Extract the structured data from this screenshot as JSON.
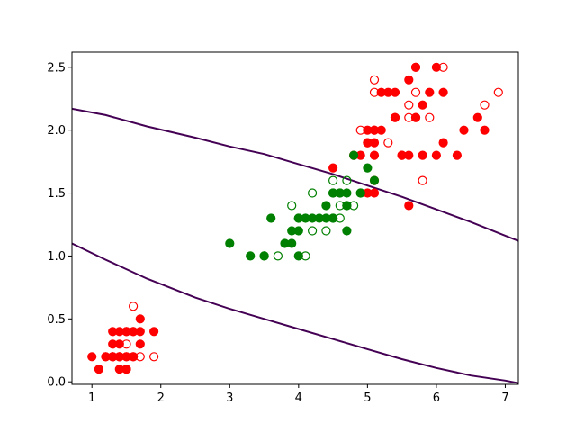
{
  "chart_data": {
    "type": "scatter",
    "title": "",
    "xlabel": "",
    "ylabel": "",
    "xlim": [
      0.71,
      7.19
    ],
    "ylim": [
      -0.02,
      2.62
    ],
    "xticks": [
      1,
      2,
      3,
      4,
      5,
      6,
      7
    ],
    "xtick_labels": [
      "1",
      "2",
      "3",
      "4",
      "5",
      "6",
      "7"
    ],
    "yticks": [
      0.0,
      0.5,
      1.0,
      1.5,
      2.0,
      2.5
    ],
    "ytick_labels": [
      "0.0",
      "0.5",
      "1.0",
      "1.5",
      "2.0",
      "2.5"
    ],
    "grid": false,
    "colors": {
      "red": "#ff0000",
      "green": "#008000",
      "boundary": "#440154"
    },
    "series": [
      {
        "color": "red",
        "fill": "filled",
        "points": [
          [
            1.0,
            0.2
          ],
          [
            1.1,
            0.1
          ],
          [
            1.2,
            0.2
          ],
          [
            1.3,
            0.2
          ],
          [
            1.3,
            0.3
          ],
          [
            1.3,
            0.4
          ],
          [
            1.4,
            0.1
          ],
          [
            1.4,
            0.2
          ],
          [
            1.4,
            0.3
          ],
          [
            1.4,
            0.4
          ],
          [
            1.5,
            0.1
          ],
          [
            1.5,
            0.2
          ],
          [
            1.5,
            0.4
          ],
          [
            1.6,
            0.2
          ],
          [
            1.6,
            0.4
          ],
          [
            1.7,
            0.3
          ],
          [
            1.7,
            0.4
          ],
          [
            1.7,
            0.5
          ],
          [
            1.9,
            0.4
          ],
          [
            1.5,
            0.1
          ],
          [
            1.4,
            0.2
          ],
          [
            1.6,
            0.2
          ],
          [
            1.5,
            0.2
          ],
          [
            1.3,
            0.2
          ],
          [
            4.5,
            1.7
          ],
          [
            4.8,
            1.8
          ],
          [
            4.9,
            1.8
          ],
          [
            5.0,
            2.0
          ],
          [
            5.0,
            1.5
          ],
          [
            5.1,
            1.9
          ],
          [
            5.1,
            2.0
          ],
          [
            5.1,
            1.5
          ],
          [
            5.1,
            1.8
          ],
          [
            5.2,
            2.3
          ],
          [
            5.3,
            2.3
          ],
          [
            5.4,
            2.3
          ],
          [
            5.5,
            1.8
          ],
          [
            5.6,
            2.4
          ],
          [
            5.6,
            1.8
          ],
          [
            5.6,
            1.4
          ],
          [
            5.7,
            2.1
          ],
          [
            5.8,
            2.2
          ],
          [
            5.8,
            1.8
          ],
          [
            5.9,
            2.3
          ],
          [
            6.0,
            2.5
          ],
          [
            6.0,
            1.8
          ],
          [
            6.1,
            2.3
          ],
          [
            6.1,
            1.9
          ],
          [
            6.3,
            1.8
          ],
          [
            6.4,
            2.0
          ],
          [
            6.6,
            2.1
          ],
          [
            6.7,
            2.0
          ],
          [
            5.0,
            1.9
          ],
          [
            5.1,
            1.6
          ],
          [
            5.1,
            2.0
          ],
          [
            5.2,
            2.0
          ],
          [
            5.4,
            2.1
          ],
          [
            5.5,
            1.8
          ],
          [
            5.7,
            2.5
          ]
        ]
      },
      {
        "color": "red",
        "fill": "hollow",
        "points": [
          [
            1.2,
            0.2
          ],
          [
            1.3,
            0.2
          ],
          [
            1.4,
            0.2
          ],
          [
            1.5,
            0.3
          ],
          [
            1.5,
            0.4
          ],
          [
            1.6,
            0.4
          ],
          [
            1.6,
            0.6
          ],
          [
            1.7,
            0.2
          ],
          [
            1.9,
            0.2
          ],
          [
            4.9,
            2.0
          ],
          [
            5.0,
            1.9
          ],
          [
            5.1,
            2.4
          ],
          [
            5.1,
            2.3
          ],
          [
            5.3,
            1.9
          ],
          [
            5.4,
            2.1
          ],
          [
            5.6,
            2.2
          ],
          [
            5.6,
            2.1
          ],
          [
            5.7,
            2.5
          ],
          [
            5.7,
            2.3
          ],
          [
            5.7,
            2.1
          ],
          [
            5.8,
            1.6
          ],
          [
            5.9,
            2.1
          ],
          [
            6.1,
            2.5
          ],
          [
            6.7,
            2.2
          ],
          [
            6.9,
            2.3
          ]
        ]
      },
      {
        "color": "green",
        "fill": "filled",
        "points": [
          [
            3.0,
            1.1
          ],
          [
            3.3,
            1.0
          ],
          [
            3.5,
            1.0
          ],
          [
            3.6,
            1.3
          ],
          [
            3.8,
            1.1
          ],
          [
            3.9,
            1.1
          ],
          [
            3.9,
            1.2
          ],
          [
            4.0,
            1.0
          ],
          [
            4.0,
            1.2
          ],
          [
            4.0,
            1.3
          ],
          [
            4.1,
            1.3
          ],
          [
            4.2,
            1.3
          ],
          [
            4.3,
            1.3
          ],
          [
            4.4,
            1.3
          ],
          [
            4.4,
            1.4
          ],
          [
            4.5,
            1.5
          ],
          [
            4.6,
            1.5
          ],
          [
            4.7,
            1.4
          ],
          [
            4.7,
            1.2
          ],
          [
            4.7,
            1.5
          ],
          [
            4.8,
            1.8
          ],
          [
            4.9,
            1.5
          ],
          [
            5.0,
            1.7
          ],
          [
            5.1,
            1.6
          ],
          [
            3.5,
            1.0
          ],
          [
            4.0,
            1.3
          ],
          [
            4.5,
            1.5
          ],
          [
            4.7,
            1.4
          ],
          [
            4.6,
            1.5
          ],
          [
            4.5,
            1.3
          ]
        ]
      },
      {
        "color": "green",
        "fill": "hollow",
        "points": [
          [
            3.7,
            1.0
          ],
          [
            3.9,
            1.4
          ],
          [
            4.1,
            1.0
          ],
          [
            4.2,
            1.2
          ],
          [
            4.2,
            1.5
          ],
          [
            4.4,
            1.2
          ],
          [
            4.5,
            1.3
          ],
          [
            4.5,
            1.6
          ],
          [
            4.6,
            1.4
          ],
          [
            4.6,
            1.3
          ],
          [
            4.7,
            1.6
          ],
          [
            4.8,
            1.4
          ],
          [
            4.9,
            1.5
          ]
        ]
      }
    ],
    "boundaries": [
      [
        [
          0.71,
          2.17
        ],
        [
          1.2,
          2.12
        ],
        [
          1.8,
          2.03
        ],
        [
          2.5,
          1.94
        ],
        [
          3.0,
          1.87
        ],
        [
          3.5,
          1.81
        ],
        [
          4.0,
          1.73
        ],
        [
          4.5,
          1.65
        ],
        [
          5.0,
          1.56
        ],
        [
          5.5,
          1.47
        ],
        [
          6.0,
          1.37
        ],
        [
          6.5,
          1.27
        ],
        [
          7.19,
          1.12
        ]
      ],
      [
        [
          0.71,
          1.1
        ],
        [
          1.2,
          0.97
        ],
        [
          1.8,
          0.82
        ],
        [
          2.5,
          0.67
        ],
        [
          3.0,
          0.58
        ],
        [
          3.5,
          0.5
        ],
        [
          4.0,
          0.42
        ],
        [
          4.5,
          0.34
        ],
        [
          5.0,
          0.26
        ],
        [
          5.5,
          0.18
        ],
        [
          6.0,
          0.11
        ],
        [
          6.5,
          0.05
        ],
        [
          7.0,
          0.01
        ],
        [
          7.19,
          -0.01
        ]
      ]
    ]
  }
}
